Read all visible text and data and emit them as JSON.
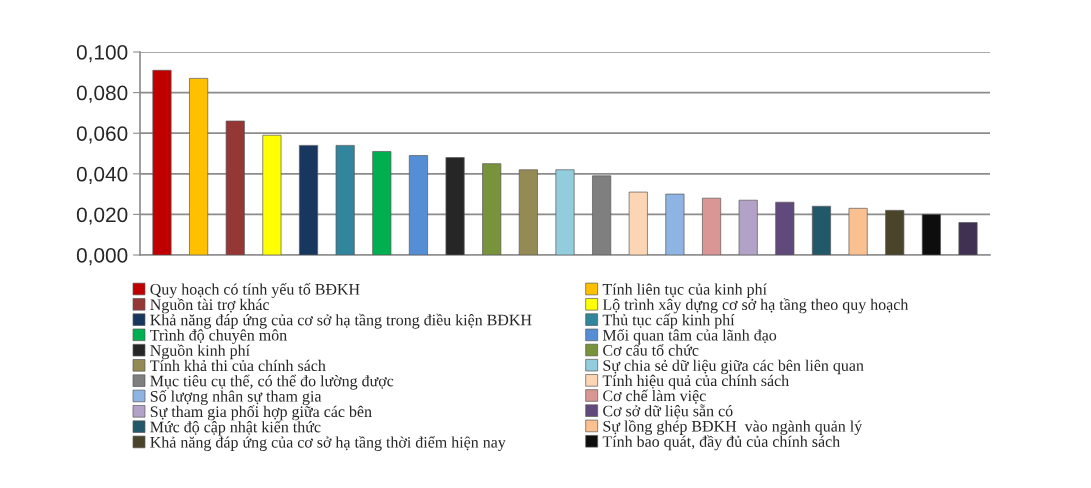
{
  "chart_data": {
    "type": "bar",
    "categories": [
      null,
      null,
      null,
      null,
      null,
      null,
      null,
      null,
      null,
      null,
      null,
      null,
      null,
      null,
      null,
      null,
      null,
      null,
      null,
      null,
      null,
      null,
      null
    ],
    "stacked": true,
    "series": [
      {
        "name": "Quy hoạch có tính yếu tố BĐKH",
        "color": "#c00000",
        "values": [
          0.091,
          null,
          null,
          null,
          null,
          null,
          null,
          null,
          null,
          null,
          null,
          null,
          null,
          null,
          null,
          null,
          null,
          null,
          null,
          null,
          null,
          null,
          null
        ]
      },
      {
        "name": "Tính liên tục của kinh phí",
        "color": "#ffc000",
        "values": [
          null,
          0.087,
          null,
          null,
          null,
          null,
          null,
          null,
          null,
          null,
          null,
          null,
          null,
          null,
          null,
          null,
          null,
          null,
          null,
          null,
          null,
          null,
          null
        ]
      },
      {
        "name": "Nguồn tài trợ khác",
        "color": "#953735",
        "values": [
          null,
          null,
          0.066,
          null,
          null,
          null,
          null,
          null,
          null,
          null,
          null,
          null,
          null,
          null,
          null,
          null,
          null,
          null,
          null,
          null,
          null,
          null,
          null
        ]
      },
      {
        "name": "Lộ trình xây dựng cơ sở hạ tầng theo quy hoạch",
        "color": "#ffff00",
        "values": [
          null,
          null,
          null,
          0.059,
          null,
          null,
          null,
          null,
          null,
          null,
          null,
          null,
          null,
          null,
          null,
          null,
          null,
          null,
          null,
          null,
          null,
          null,
          null
        ]
      },
      {
        "name": "Khả năng đáp ứng của cơ sở hạ tầng trong điều kiện BĐKH",
        "color": "#17375e",
        "values": [
          null,
          null,
          null,
          null,
          0.054,
          null,
          null,
          null,
          null,
          null,
          null,
          null,
          null,
          null,
          null,
          null,
          null,
          null,
          null,
          null,
          null,
          null,
          null
        ]
      },
      {
        "name": "Thủ tục cấp kinh phí",
        "color": "#31859c",
        "values": [
          null,
          null,
          null,
          null,
          null,
          0.054,
          null,
          null,
          null,
          null,
          null,
          null,
          null,
          null,
          null,
          null,
          null,
          null,
          null,
          null,
          null,
          null,
          null
        ]
      },
      {
        "name": "Trình độ chuyên môn",
        "color": "#00b050",
        "values": [
          null,
          null,
          null,
          null,
          null,
          null,
          0.051,
          null,
          null,
          null,
          null,
          null,
          null,
          null,
          null,
          null,
          null,
          null,
          null,
          null,
          null,
          null,
          null
        ]
      },
      {
        "name": "Mối quan tâm của lãnh đạo",
        "color": "#558ed5",
        "values": [
          null,
          null,
          null,
          null,
          null,
          null,
          null,
          0.049,
          null,
          null,
          null,
          null,
          null,
          null,
          null,
          null,
          null,
          null,
          null,
          null,
          null,
          null,
          null
        ]
      },
      {
        "name": "Nguồn kinh phí",
        "color": "#262626",
        "values": [
          null,
          null,
          null,
          null,
          null,
          null,
          null,
          null,
          0.048,
          null,
          null,
          null,
          null,
          null,
          null,
          null,
          null,
          null,
          null,
          null,
          null,
          null,
          null
        ]
      },
      {
        "name": "Cơ cấu tổ chức",
        "color": "#77933c",
        "values": [
          null,
          null,
          null,
          null,
          null,
          null,
          null,
          null,
          null,
          0.045,
          null,
          null,
          null,
          null,
          null,
          null,
          null,
          null,
          null,
          null,
          null,
          null,
          null
        ]
      },
      {
        "name": "Tính khả thi của chính sách",
        "color": "#948a54",
        "values": [
          null,
          null,
          null,
          null,
          null,
          null,
          null,
          null,
          null,
          null,
          0.042,
          null,
          null,
          null,
          null,
          null,
          null,
          null,
          null,
          null,
          null,
          null,
          null
        ]
      },
      {
        "name": "Sự chia sẻ dữ liệu giữa các bên liên quan",
        "color": "#93cddd",
        "values": [
          null,
          null,
          null,
          null,
          null,
          null,
          null,
          null,
          null,
          null,
          null,
          0.042,
          null,
          null,
          null,
          null,
          null,
          null,
          null,
          null,
          null,
          null,
          null
        ]
      },
      {
        "name": "Mục tiêu cụ thể, có thể đo lường được",
        "color": "#7f7f7f",
        "values": [
          null,
          null,
          null,
          null,
          null,
          null,
          null,
          null,
          null,
          null,
          null,
          null,
          0.039,
          null,
          null,
          null,
          null,
          null,
          null,
          null,
          null,
          null,
          null
        ]
      },
      {
        "name": "Tính hiệu quả của chính sách",
        "color": "#fcd5b5",
        "values": [
          null,
          null,
          null,
          null,
          null,
          null,
          null,
          null,
          null,
          null,
          null,
          null,
          null,
          0.031,
          null,
          null,
          null,
          null,
          null,
          null,
          null,
          null,
          null
        ]
      },
      {
        "name": "Số lượng nhân sự tham gia",
        "color": "#8eb4e3",
        "values": [
          null,
          null,
          null,
          null,
          null,
          null,
          null,
          null,
          null,
          null,
          null,
          null,
          null,
          null,
          0.03,
          null,
          null,
          null,
          null,
          null,
          null,
          null,
          null
        ]
      },
      {
        "name": "Cơ chế làm việc",
        "color": "#d99694",
        "values": [
          null,
          null,
          null,
          null,
          null,
          null,
          null,
          null,
          null,
          null,
          null,
          null,
          null,
          null,
          null,
          0.028,
          null,
          null,
          null,
          null,
          null,
          null,
          null
        ]
      },
      {
        "name": "Sự tham gia phối hợp giữa các bên",
        "color": "#b3a2c7",
        "values": [
          null,
          null,
          null,
          null,
          null,
          null,
          null,
          null,
          null,
          null,
          null,
          null,
          null,
          null,
          null,
          null,
          0.027,
          null,
          null,
          null,
          null,
          null,
          null
        ]
      },
      {
        "name": "Cơ sở dữ liệu sẵn có",
        "color": "#604a7b",
        "values": [
          null,
          null,
          null,
          null,
          null,
          null,
          null,
          null,
          null,
          null,
          null,
          null,
          null,
          null,
          null,
          null,
          null,
          0.026,
          null,
          null,
          null,
          null,
          null
        ]
      },
      {
        "name": "Mức độ cập nhật kiến thức",
        "color": "#215968",
        "values": [
          null,
          null,
          null,
          null,
          null,
          null,
          null,
          null,
          null,
          null,
          null,
          null,
          null,
          null,
          null,
          null,
          null,
          null,
          0.024,
          null,
          null,
          null,
          null
        ]
      },
      {
        "name": "Sự lồng ghép BĐKH  vào ngành quản lý",
        "color": "#fac090",
        "values": [
          null,
          null,
          null,
          null,
          null,
          null,
          null,
          null,
          null,
          null,
          null,
          null,
          null,
          null,
          null,
          null,
          null,
          null,
          null,
          0.023,
          null,
          null,
          null
        ]
      },
      {
        "name": "Khả năng đáp ứng của cơ sở hạ tầng thời điểm hiện nay",
        "color": "#4a452a",
        "values": [
          null,
          null,
          null,
          null,
          null,
          null,
          null,
          null,
          null,
          null,
          null,
          null,
          null,
          null,
          null,
          null,
          null,
          null,
          null,
          null,
          0.022,
          null,
          null
        ]
      },
      {
        "name": "Tính bao quát, đầy đủ của chính sách",
        "color": "#0d0d0d",
        "values": [
          null,
          null,
          null,
          null,
          null,
          null,
          null,
          null,
          null,
          null,
          null,
          null,
          null,
          null,
          null,
          null,
          null,
          null,
          null,
          null,
          null,
          0.02,
          null
        ]
      },
      {
        "color": "#403152",
        "values": [
          null,
          null,
          null,
          null,
          null,
          null,
          null,
          null,
          null,
          null,
          null,
          null,
          null,
          null,
          null,
          null,
          null,
          null,
          null,
          null,
          null,
          null,
          0.016
        ]
      }
    ],
    "ylim": [
      0,
      0.1
    ],
    "yticks": [
      {
        "value": 0,
        "label": "0,000"
      },
      {
        "value": 0.02,
        "label": "0,020"
      },
      {
        "value": 0.04,
        "label": "0,040"
      },
      {
        "value": 0.06,
        "label": "0,060"
      },
      {
        "value": 0.08,
        "label": "0,080"
      },
      {
        "value": 0.1,
        "label": "0,100"
      }
    ],
    "grid": "y",
    "legend": "bottom",
    "tick_labels": "y"
  }
}
